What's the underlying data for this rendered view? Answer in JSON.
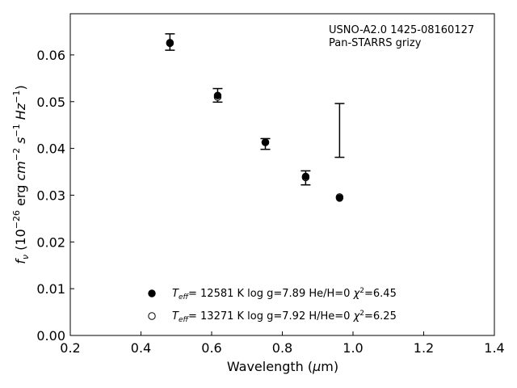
{
  "chart_data": {
    "type": "scatter",
    "annotation": {
      "line1": "USNO-A2.0 1425-08160127",
      "line2": "Pan-STARRS grizy"
    },
    "xlabel": {
      "text": "Wavelength (",
      "greek": "μ",
      "tail": "m)"
    },
    "ylabel": {
      "f": "f",
      "nu": "ν",
      "open": " (10",
      "exp1": "−26",
      "mid": " erg ",
      "cm": "cm",
      "exp2": "−2",
      "s": " s",
      "exp3": "−1",
      "hz": " Hz",
      "exp4": "−1",
      "close": ")"
    },
    "xlim": [
      0.2,
      1.4
    ],
    "ylim": [
      0.0,
      0.0688
    ],
    "xticks": [
      0.2,
      0.4,
      0.6,
      0.8,
      1.0,
      1.2,
      1.4
    ],
    "xtick_labels": [
      "0.2",
      "0.4",
      "0.6",
      "0.8",
      "1.0",
      "1.2",
      "1.4"
    ],
    "yticks": [
      0.0,
      0.01,
      0.02,
      0.03,
      0.04,
      0.05,
      0.06
    ],
    "ytick_labels": [
      "0.00",
      "0.01",
      "0.02",
      "0.03",
      "0.04",
      "0.05",
      "0.06"
    ],
    "grid": false,
    "observed": {
      "x": [
        0.482,
        0.617,
        0.752,
        0.866,
        0.962
      ],
      "y": [
        0.0627,
        0.0515,
        0.0413,
        0.0337,
        0.0437
      ],
      "yerr_low": [
        0.061,
        0.0499,
        0.0398,
        0.0322,
        0.0381
      ],
      "yerr_high": [
        0.0645,
        0.0528,
        0.0421,
        0.0352,
        0.0496
      ],
      "marker_visible": [
        false,
        false,
        false,
        false,
        false
      ]
    },
    "series": [
      {
        "marker": "filled",
        "label": {
          "teff": "T",
          "sub": "eff",
          "text": "= 12581 K  log g=7.89  He/H=0  ",
          "chi": "χ",
          "sup": "2",
          "rest": "=6.45"
        },
        "x": [
          0.482,
          0.617,
          0.752,
          0.866,
          0.962
        ],
        "y": [
          0.0625,
          0.0513,
          0.0413,
          0.034,
          0.0294
        ]
      },
      {
        "marker": "open",
        "label": {
          "teff": "T",
          "sub": "eff",
          "text": "= 13271 K  log g=7.92  H/He=0  ",
          "chi": "χ",
          "sup": "2",
          "rest": "=6.25"
        },
        "x": [
          0.482,
          0.617,
          0.752,
          0.866,
          0.962
        ],
        "y": [
          0.0626,
          0.051,
          0.0413,
          0.0338,
          0.0296
        ]
      }
    ],
    "legend_location": "lower-center",
    "colors": {
      "marker": "#000000",
      "axes": "#000000",
      "background": "#ffffff"
    }
  }
}
